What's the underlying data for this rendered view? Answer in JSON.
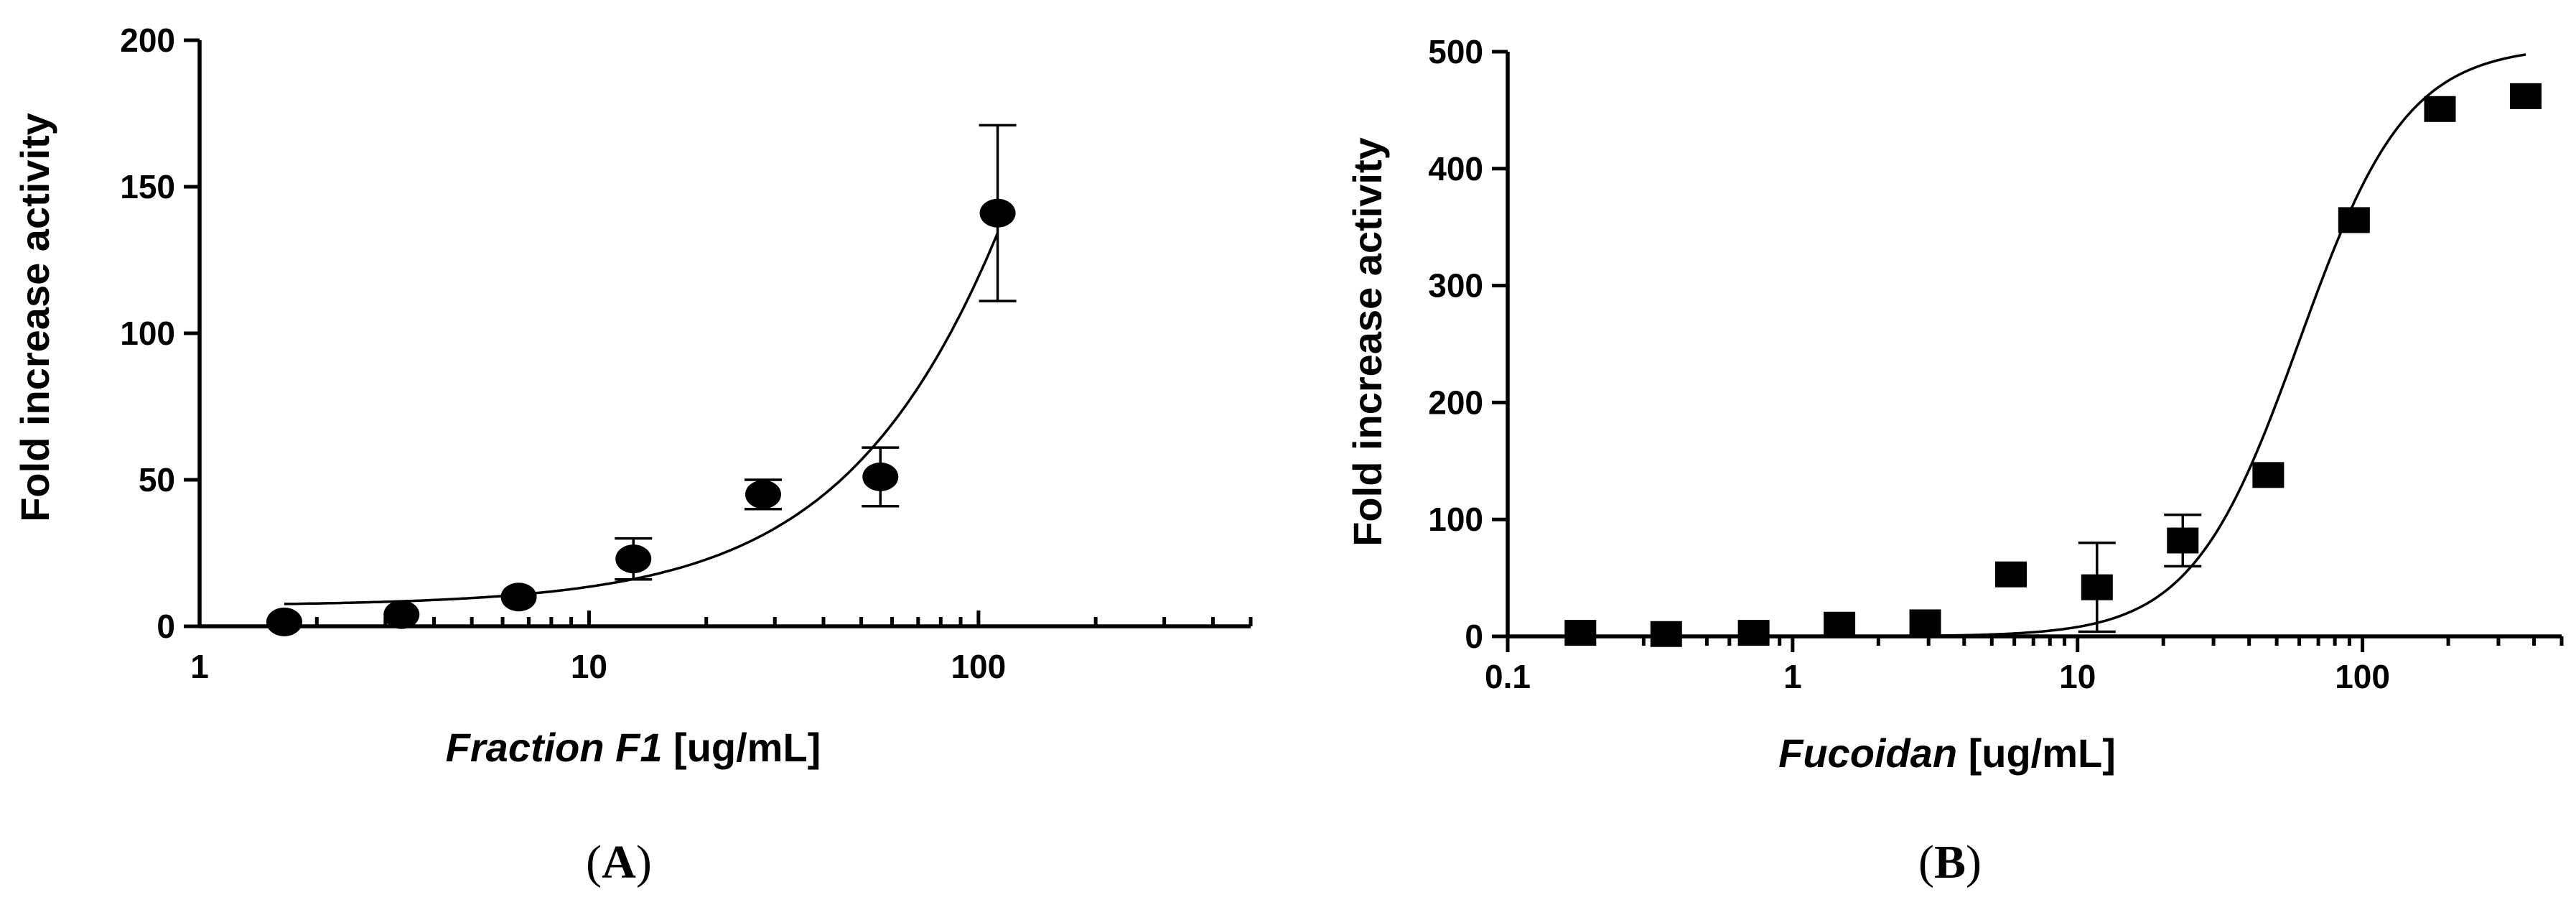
{
  "chart_data": [
    {
      "type": "scatter",
      "panel": "A",
      "xscale": "log",
      "xlim": [
        1,
        500
      ],
      "ylim": [
        0,
        200
      ],
      "xticks": [
        1,
        10,
        100
      ],
      "xtick_labels": [
        "1",
        "10",
        "100"
      ],
      "yticks": [
        0,
        50,
        100,
        150,
        200
      ],
      "ytick_labels": [
        "0",
        "50",
        "100",
        "150",
        "200"
      ],
      "xlabel_italic": "Fraction F1",
      "xlabel_rest": " [ug/mL]",
      "ylabel": "Fold increase activity",
      "panel_label_open": "(",
      "panel_label_letter": "A",
      "panel_label_close": ")",
      "marker": "circle",
      "grid": false,
      "points": [
        {
          "x": 1.65,
          "y": 1.5
        },
        {
          "x": 3.3,
          "y": 4
        },
        {
          "x": 6.6,
          "y": 10
        },
        {
          "x": 13,
          "y": 23,
          "err": 7
        },
        {
          "x": 28,
          "y": 45,
          "err": 5
        },
        {
          "x": 56,
          "y": 51,
          "err": 10
        },
        {
          "x": 112,
          "y": 141,
          "err": 30
        }
      ],
      "fit": {
        "bottom": 7,
        "top": 800,
        "ec50": 400,
        "hill": 1.3,
        "x_range": [
          1.65,
          112
        ]
      }
    },
    {
      "type": "scatter",
      "panel": "B",
      "xscale": "log",
      "xlim": [
        0.1,
        500
      ],
      "ylim": [
        0,
        500
      ],
      "xticks": [
        0.1,
        1,
        10,
        100
      ],
      "xtick_labels": [
        "0.1",
        "1",
        "10",
        "100"
      ],
      "yticks": [
        0,
        100,
        200,
        300,
        400,
        500
      ],
      "ytick_labels": [
        "0",
        "100",
        "200",
        "300",
        "400",
        "500"
      ],
      "xlabel_italic": "Fucoidan",
      "xlabel_rest": " [ug/mL]",
      "ylabel": "Fold increase activity",
      "panel_label_open": "(",
      "panel_label_letter": "B",
      "panel_label_close": ")",
      "marker": "square",
      "grid": false,
      "points": [
        {
          "x": 0.18,
          "y": 3
        },
        {
          "x": 0.36,
          "y": 2
        },
        {
          "x": 0.73,
          "y": 3
        },
        {
          "x": 1.46,
          "y": 10
        },
        {
          "x": 2.92,
          "y": 12
        },
        {
          "x": 5.84,
          "y": 53
        },
        {
          "x": 11.7,
          "y": 42,
          "err": 38
        },
        {
          "x": 23.4,
          "y": 82,
          "err": 22
        },
        {
          "x": 46.7,
          "y": 138
        },
        {
          "x": 93.4,
          "y": 356
        },
        {
          "x": 187,
          "y": 451
        },
        {
          "x": 374,
          "y": 462
        }
      ],
      "fit": {
        "bottom": 0,
        "top": 505,
        "ec50": 60,
        "hill": 2.3,
        "x_range": [
          3,
          374
        ]
      }
    }
  ]
}
